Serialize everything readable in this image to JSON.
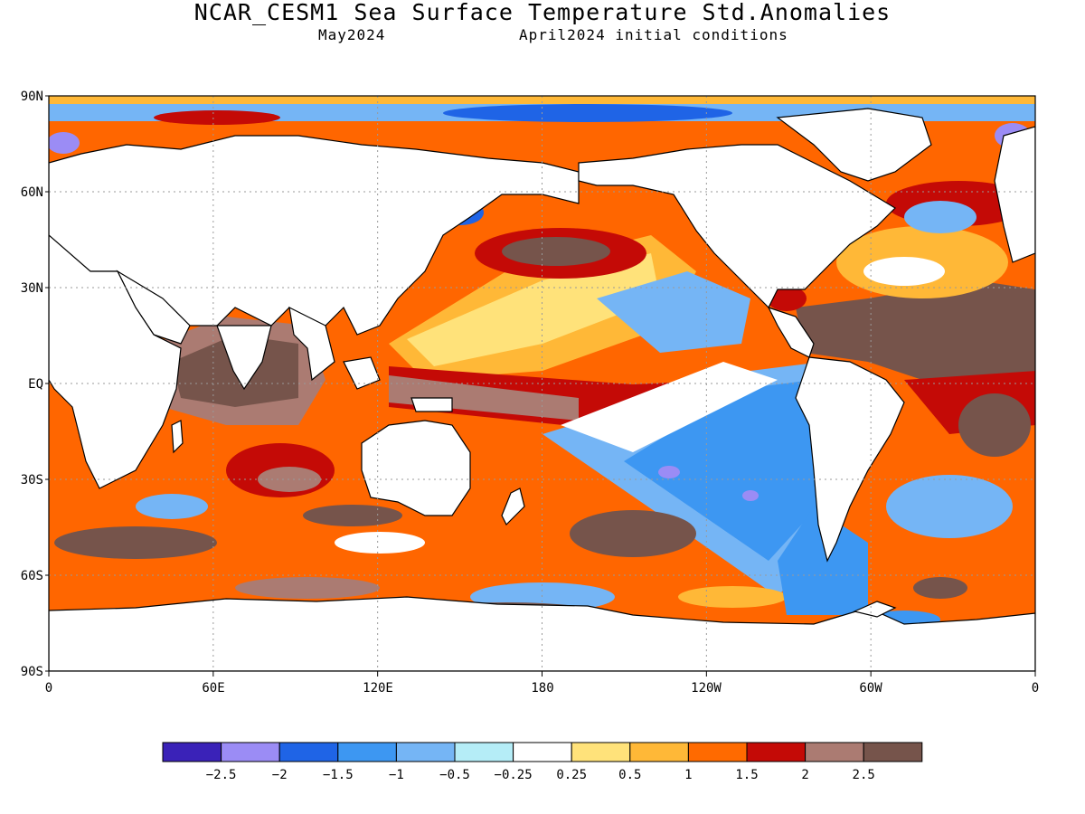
{
  "title": "NCAR_CESM1 Sea Surface Temperature Std.Anomalies",
  "subtitle_left": "May2024",
  "subtitle_right": "April2024 initial conditions",
  "map": {
    "lat_ticks": [
      "90N",
      "60N",
      "30N",
      "EQ",
      "30S",
      "60S",
      "90S"
    ],
    "lon_ticks": [
      "0",
      "60E",
      "120E",
      "180",
      "120W",
      "60W",
      "0"
    ],
    "grid": "dotted",
    "ocean_base_color": "#ff6600",
    "land_color": "#ffffff"
  },
  "legend": {
    "colors": [
      "#3a22b8",
      "#9b8cf5",
      "#1f64e6",
      "#3d97f2",
      "#75b5f5",
      "#b5edf7",
      "#ffffff",
      "#ffe27a",
      "#ffb837",
      "#ff6a00",
      "#c40a06",
      "#ab7b72",
      "#76544b"
    ],
    "labels": [
      "−2.5",
      "−2",
      "−1.5",
      "−1",
      "−0.5",
      "−0.25",
      "0.25",
      "0.5",
      "1",
      "1.5",
      "2",
      "2.5"
    ]
  }
}
